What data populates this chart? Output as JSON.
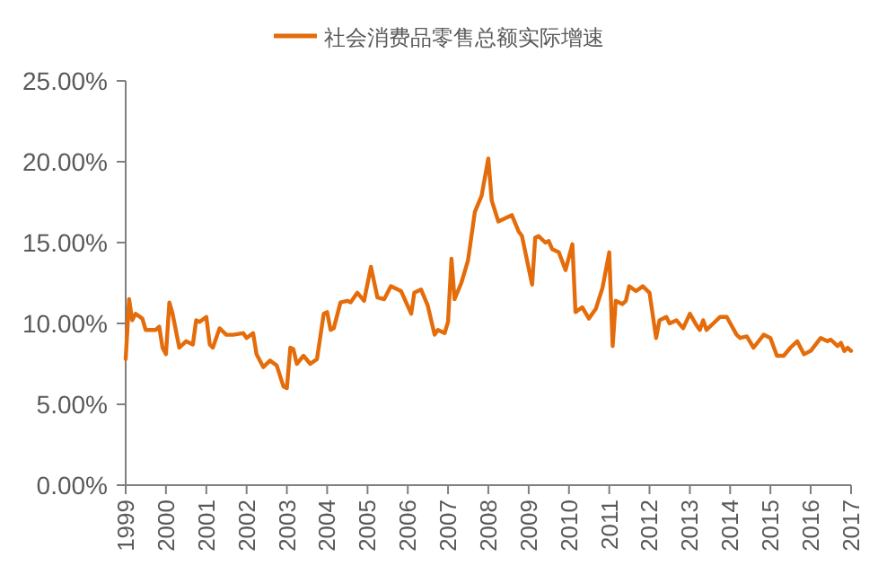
{
  "chart_data": {
    "type": "line",
    "legend": "top",
    "x": [
      "1999-01",
      "1999-02",
      "1999-03",
      "1999-04",
      "1999-06",
      "1999-07",
      "1999-10",
      "1999-11",
      "1999-12",
      "2000-01",
      "2000-02",
      "2000-03",
      "2000-05",
      "2000-07",
      "2000-09",
      "2000-10",
      "2000-11",
      "2001-01",
      "2001-02",
      "2001-03",
      "2001-05",
      "2001-07",
      "2001-09",
      "2001-12",
      "2002-01",
      "2002-03",
      "2002-04",
      "2002-06",
      "2002-08",
      "2002-10",
      "2002-12",
      "2003-01",
      "2003-02",
      "2003-03",
      "2003-04",
      "2003-06",
      "2003-08",
      "2003-10",
      "2003-12",
      "2004-01",
      "2004-02",
      "2004-03",
      "2004-05",
      "2004-07",
      "2004-08",
      "2004-10",
      "2004-12",
      "2005-02",
      "2005-04",
      "2005-06",
      "2005-08",
      "2005-11",
      "2006-02",
      "2006-03",
      "2006-05",
      "2006-07",
      "2006-09",
      "2006-10",
      "2006-12",
      "2007-01",
      "2007-02",
      "2007-03",
      "2007-05",
      "2007-07",
      "2007-08",
      "2007-09",
      "2007-11",
      "2008-01",
      "2008-02",
      "2008-04",
      "2008-06",
      "2008-08",
      "2008-10",
      "2008-11",
      "2009-02",
      "2009-03",
      "2009-04",
      "2009-06",
      "2009-07",
      "2009-08",
      "2009-10",
      "2009-12",
      "2010-02",
      "2010-03",
      "2010-05",
      "2010-07",
      "2010-09",
      "2010-11",
      "2011-01",
      "2011-02",
      "2011-03",
      "2011-05",
      "2011-06",
      "2011-07",
      "2011-09",
      "2011-11",
      "2012-01",
      "2012-03",
      "2012-04",
      "2012-06",
      "2012-07",
      "2012-09",
      "2012-11",
      "2013-01",
      "2013-03",
      "2013-04",
      "2013-05",
      "2013-06",
      "2013-08",
      "2013-10",
      "2013-12",
      "2014-03",
      "2014-04",
      "2014-06",
      "2014-08",
      "2014-11",
      "2015-01",
      "2015-03",
      "2015-05",
      "2015-07",
      "2015-09",
      "2015-11",
      "2016-01",
      "2016-04",
      "2016-06",
      "2016-07",
      "2016-09",
      "2016-10",
      "2016-11",
      "2016-12",
      "2017-01"
    ],
    "series": [
      {
        "name": "社会消费品零售总额实际增速",
        "color": "#e46c0a",
        "values": [
          7.8,
          11.5,
          10.2,
          10.6,
          10.3,
          9.6,
          9.6,
          9.8,
          8.5,
          8.1,
          11.3,
          10.6,
          8.5,
          8.9,
          8.7,
          10.2,
          10.1,
          10.4,
          8.7,
          8.5,
          9.7,
          9.3,
          9.3,
          9.4,
          9.1,
          9.4,
          8.1,
          7.3,
          7.7,
          7.4,
          6.1,
          6.0,
          8.5,
          8.4,
          7.5,
          8.0,
          7.5,
          7.8,
          10.6,
          10.7,
          9.6,
          9.7,
          11.3,
          11.4,
          11.3,
          11.9,
          11.4,
          13.5,
          11.6,
          11.5,
          12.3,
          12.0,
          10.6,
          11.9,
          12.1,
          11.1,
          9.3,
          9.6,
          9.4,
          10.1,
          14.0,
          11.5,
          12.5,
          13.9,
          15.4,
          16.9,
          17.9,
          20.2,
          17.6,
          16.3,
          16.5,
          16.7,
          15.7,
          15.4,
          12.4,
          15.3,
          15.4,
          15.0,
          15.1,
          14.6,
          14.4,
          13.3,
          14.9,
          10.7,
          11.0,
          10.3,
          10.9,
          12.2,
          14.4,
          8.6,
          11.4,
          11.2,
          11.4,
          12.3,
          12.0,
          12.3,
          11.9,
          9.1,
          10.2,
          10.4,
          10.0,
          10.2,
          9.7,
          10.6,
          9.9,
          9.6,
          10.2,
          9.6,
          10.0,
          10.4,
          10.4,
          9.3,
          9.1,
          9.2,
          8.5,
          9.3,
          9.1,
          8.0,
          8.0,
          8.5,
          8.9,
          8.1,
          8.3,
          9.1,
          8.9,
          9.0,
          8.6,
          8.8,
          8.3,
          8.5,
          8.3
        ]
      }
    ],
    "xlim": [
      "1999",
      "2017"
    ],
    "xticks": [
      "1999",
      "2000",
      "2001",
      "2002",
      "2003",
      "2004",
      "2005",
      "2006",
      "2007",
      "2008",
      "2009",
      "2010",
      "2011",
      "2012",
      "2013",
      "2014",
      "2015",
      "2016",
      "2017"
    ],
    "ylim": [
      0,
      25
    ],
    "yticks": [
      {
        "value": 0,
        "label": "0.00%"
      },
      {
        "value": 5,
        "label": "5.00%"
      },
      {
        "value": 10,
        "label": "10.00%"
      },
      {
        "value": 15,
        "label": "15.00%"
      },
      {
        "value": 20,
        "label": "20.00%"
      },
      {
        "value": 25,
        "label": "25.00%"
      }
    ]
  }
}
